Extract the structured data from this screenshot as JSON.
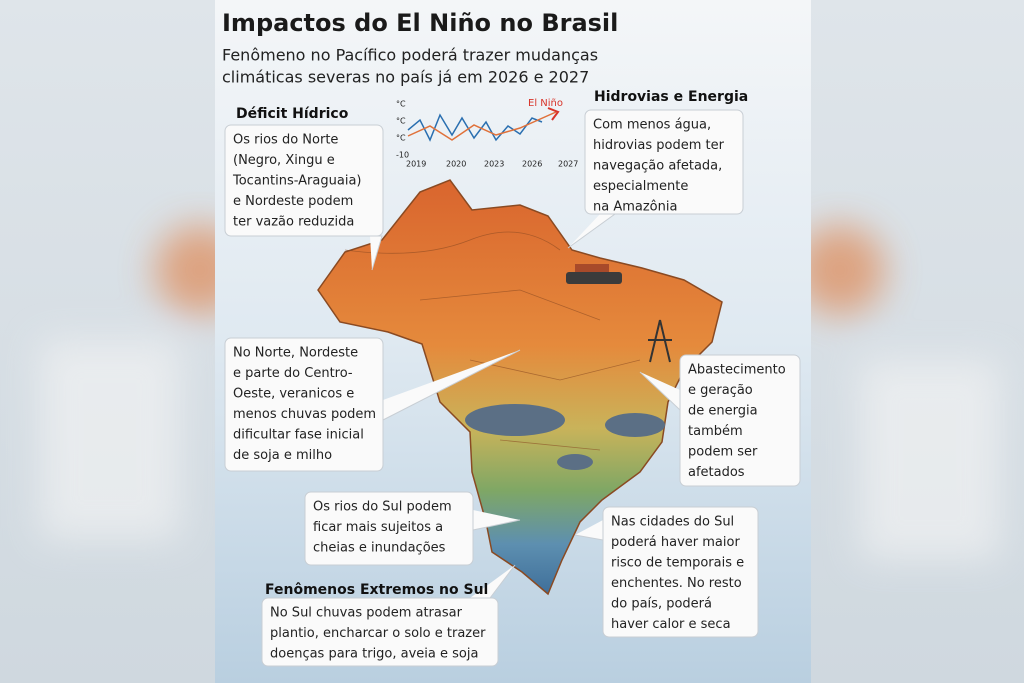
{
  "header": {
    "title": "Impactos do El Niño no Brasil",
    "subtitle": [
      "Fenômeno no Pacífico poderá trazer mudanças",
      "climáticas severas no país já em 2026 e 2027"
    ]
  },
  "inset": {
    "label": "El Niño",
    "y_labels": [
      "°C",
      "°C",
      "°C",
      "-10"
    ],
    "x_labels": [
      "2019",
      "2020",
      "2023",
      "2026",
      "2027"
    ]
  },
  "callouts": [
    {
      "heading": "Déficit Hídrico",
      "lines": [
        "Os rios do Norte",
        "(Negro, Xingu e",
        "Tocantins-Araguaia)",
        "e Nordeste podem",
        "ter vazão reduzida"
      ]
    },
    {
      "heading": "Hidrovias e Energia",
      "lines": [
        "Com menos água,",
        "hidrovias podem ter",
        "navegação afetada,",
        "especialmente",
        "na Amazônia"
      ]
    },
    {
      "lines": [
        "No Norte, Nordeste",
        "e parte do Centro-",
        "Oeste, veranicos e",
        "menos chuvas podem",
        "dificultar fase inicial",
        "de soja e milho"
      ]
    },
    {
      "lines": [
        "Abastecimento",
        "e geração",
        "de energia",
        "também",
        "podem ser",
        "afetados"
      ]
    },
    {
      "lines": [
        "Os rios do Sul podem",
        "ficar mais sujeitos a",
        "cheias e inundações"
      ]
    },
    {
      "lines": [
        "Nas cidades do Sul",
        "poderá haver maior",
        "risco de temporais e",
        "enchentes. No resto",
        "do país, poderá",
        "haver calor e seca"
      ]
    },
    {
      "heading": "Fenômenos Extremos no Sul",
      "lines": [
        "No Sul chuvas podem atrasar",
        "plantio, encharcar o solo e trazer",
        "doenças para trigo, aveia e soja"
      ]
    }
  ]
}
